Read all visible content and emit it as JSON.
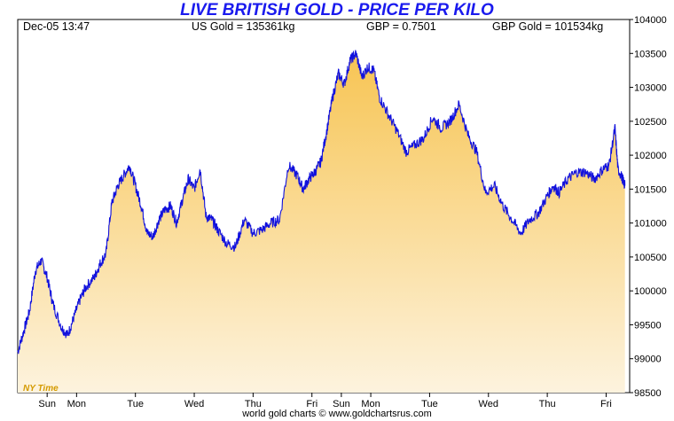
{
  "title": "LIVE BRITISH GOLD - PRICE PER KILO",
  "header": {
    "datetime": "Dec-05  13:47",
    "us_gold": "US Gold = 135361kg",
    "gbp_rate": "GBP = 0.7501",
    "gbp_gold": "GBP Gold = 101534kg"
  },
  "footer": "world gold charts © www.goldchartsrus.com",
  "timezone_label": "NY Time",
  "colors": {
    "line": "#1111dd",
    "fill_top": "#f7c452",
    "fill_bottom": "#fdf3de",
    "title": "#1a1aee"
  },
  "chart_data": {
    "type": "area",
    "ylim": [
      98500,
      104000
    ],
    "y_ticks": [
      98500,
      99000,
      99500,
      100000,
      100500,
      101000,
      101500,
      102000,
      102500,
      103000,
      103500,
      104000
    ],
    "x_ticks": [
      "Sun",
      "Mon",
      "Tue",
      "Wed",
      "Thu",
      "Fri",
      "Sun",
      "Mon",
      "Tue",
      "Wed",
      "Thu",
      "Fri"
    ],
    "x_tick_positions": [
      0.5,
      1.0,
      2.0,
      3.0,
      4.0,
      5.0,
      5.5,
      6.0,
      7.0,
      8.0,
      9.0,
      10.0
    ],
    "x_range": [
      0,
      10.4
    ],
    "grid": false,
    "series": [
      {
        "x": [
          0.0,
          0.1,
          0.2,
          0.3,
          0.4,
          0.5,
          0.6,
          0.75,
          0.85,
          0.95,
          1.05,
          1.15,
          1.3,
          1.4,
          1.5,
          1.6,
          1.7,
          1.8,
          1.9,
          2.0,
          2.1,
          2.2,
          2.3,
          2.4,
          2.5,
          2.6,
          2.7,
          2.8,
          2.9,
          3.0,
          3.1,
          3.2,
          3.3,
          3.4,
          3.55,
          3.7,
          3.85,
          4.0,
          4.15,
          4.3,
          4.45,
          4.6,
          4.75,
          4.85,
          4.95,
          5.05,
          5.15,
          5.25,
          5.35,
          5.45,
          5.55,
          5.65,
          5.75,
          5.85,
          5.95,
          6.05,
          6.15,
          6.3,
          6.45,
          6.6,
          6.75,
          6.9,
          7.05,
          7.2,
          7.35,
          7.5,
          7.65,
          7.8,
          7.95,
          8.1,
          8.25,
          8.4,
          8.55,
          8.7,
          8.85,
          9.0,
          9.1,
          9.2,
          9.35,
          9.5,
          9.65,
          9.8,
          9.95,
          10.05,
          10.15,
          10.2,
          10.28,
          10.32
        ],
        "y": [
          99100,
          99400,
          99700,
          100300,
          100450,
          100200,
          99800,
          99450,
          99350,
          99600,
          99850,
          100050,
          100200,
          100400,
          100550,
          101300,
          101550,
          101700,
          101850,
          101550,
          101250,
          100850,
          100800,
          101050,
          101200,
          101250,
          101000,
          101350,
          101650,
          101500,
          101800,
          101100,
          101050,
          100900,
          100700,
          100650,
          101050,
          100850,
          100900,
          101000,
          101050,
          101850,
          101700,
          101500,
          101650,
          101750,
          101900,
          102350,
          102850,
          103200,
          103050,
          103400,
          103500,
          103150,
          103300,
          103250,
          102850,
          102600,
          102350,
          102050,
          102150,
          102250,
          102550,
          102400,
          102500,
          102750,
          102300,
          102050,
          101450,
          101550,
          101250,
          101050,
          100850,
          101050,
          101150,
          101400,
          101550,
          101450,
          101650,
          101750,
          101750,
          101650,
          101800,
          101850,
          102400,
          101800,
          101650,
          101550
        ]
      }
    ]
  }
}
